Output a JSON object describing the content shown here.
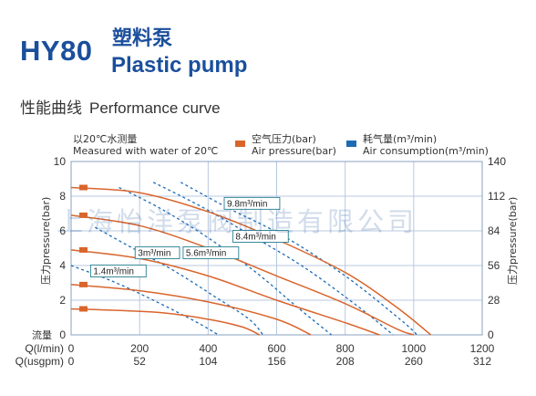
{
  "header": {
    "model": "HY80",
    "title_cn": "塑料泵",
    "title_en": "Plastic pump",
    "section_cn": "性能曲线",
    "section_en": "Performance curve"
  },
  "note": {
    "line1": "以20℃水测量",
    "line2": "Measured with water of 20℃"
  },
  "legend": {
    "air_pressure": {
      "cn": "空气压力(bar)",
      "en": "Air pressure(bar)",
      "color": "#d9652c"
    },
    "air_consumption": {
      "cn": "耗气量(m³/min)",
      "en": "Air consumption(m³/min)",
      "color": "#1c6bb5"
    }
  },
  "watermark": "上海怡洋泵阀制造有限公司",
  "chart_data": {
    "type": "line",
    "y_left": {
      "label": "压力pressure(bar)",
      "ticks": [
        "0",
        "2",
        "4",
        "6",
        "8",
        "10"
      ],
      "range": [
        0,
        10
      ]
    },
    "y_right": {
      "label": "压力pressure(bar)",
      "ticks": [
        "0",
        "28",
        "56",
        "84",
        "112",
        "140"
      ]
    },
    "x": {
      "range": [
        0,
        1200
      ],
      "lpm_ticks": [
        "0",
        "200",
        "400",
        "600",
        "800",
        "1000",
        "1200"
      ],
      "usgpm_ticks": [
        "0",
        "52",
        "104",
        "156",
        "208",
        "260",
        "312"
      ],
      "label_flow": "流量",
      "label_lpm": "Q(l/min)",
      "label_usgpm": "Q(usgpm)"
    },
    "grid": true,
    "air_pressure_markers": [
      1.5,
      2.9,
      4.9,
      6.9,
      8.5
    ],
    "air_pressure_curves": [
      {
        "points": [
          [
            0,
            1.5
          ],
          [
            250,
            1.3
          ],
          [
            400,
            0.9
          ],
          [
            500,
            0.45
          ],
          [
            550,
            0
          ]
        ]
      },
      {
        "points": [
          [
            0,
            2.9
          ],
          [
            200,
            2.55
          ],
          [
            400,
            1.9
          ],
          [
            600,
            0.9
          ],
          [
            700,
            0
          ]
        ]
      },
      {
        "points": [
          [
            0,
            4.9
          ],
          [
            200,
            4.4
          ],
          [
            400,
            3.4
          ],
          [
            600,
            2.0
          ],
          [
            800,
            0.7
          ],
          [
            900,
            0
          ]
        ]
      },
      {
        "points": [
          [
            0,
            6.9
          ],
          [
            200,
            6.3
          ],
          [
            400,
            5.0
          ],
          [
            600,
            3.4
          ],
          [
            800,
            1.8
          ],
          [
            950,
            0.35
          ],
          [
            1000,
            0
          ]
        ]
      },
      {
        "points": [
          [
            0,
            8.5
          ],
          [
            200,
            8.2
          ],
          [
            400,
            7.1
          ],
          [
            600,
            5.5
          ],
          [
            800,
            3.6
          ],
          [
            950,
            1.6
          ],
          [
            1050,
            0
          ]
        ]
      }
    ],
    "air_consumption_curves": [
      {
        "label": "1.4m³/min",
        "label_at": [
          65,
          3.5
        ],
        "points": [
          [
            0,
            4.0
          ],
          [
            120,
            3.1
          ],
          [
            240,
            2.0
          ],
          [
            360,
            0.8
          ],
          [
            430,
            0
          ]
        ]
      },
      {
        "label": "3m³/min",
        "label_at": [
          195,
          4.55
        ],
        "points": [
          [
            70,
            6.2
          ],
          [
            180,
            5.0
          ],
          [
            300,
            3.7
          ],
          [
            420,
            2.2
          ],
          [
            520,
            0.9
          ],
          [
            560,
            0
          ]
        ]
      },
      {
        "label": "5.6m³/min",
        "label_at": [
          335,
          4.55
        ],
        "points": [
          [
            140,
            8.5
          ],
          [
            260,
            7.3
          ],
          [
            400,
            5.6
          ],
          [
            540,
            3.6
          ],
          [
            660,
            1.6
          ],
          [
            760,
            0
          ]
        ]
      },
      {
        "label": "8.4m³/min",
        "label_at": [
          480,
          5.5
        ],
        "points": [
          [
            240,
            8.8
          ],
          [
            380,
            7.4
          ],
          [
            520,
            5.8
          ],
          [
            680,
            3.9
          ],
          [
            840,
            1.6
          ],
          [
            940,
            0
          ]
        ]
      },
      {
        "label": "9.8m³/min",
        "label_at": [
          455,
          7.4
        ],
        "points": [
          [
            320,
            8.8
          ],
          [
            460,
            7.3
          ],
          [
            620,
            5.7
          ],
          [
            800,
            3.4
          ],
          [
            960,
            0.9
          ],
          [
            1010,
            0
          ]
        ]
      }
    ]
  }
}
